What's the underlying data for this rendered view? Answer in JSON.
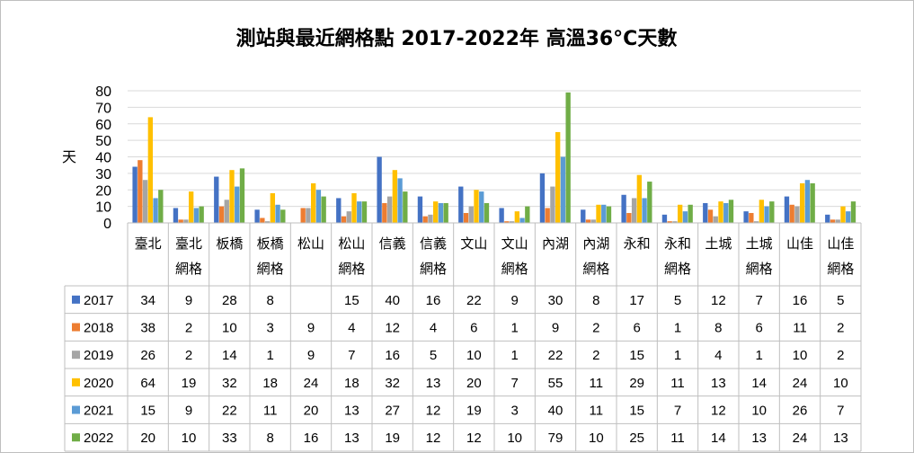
{
  "chart_data": {
    "type": "bar",
    "title": "測站與最近網格點 2017-2022年 高溫36°C天數",
    "ylabel": "天",
    "ylim": [
      0,
      80
    ],
    "yticks": [
      0,
      10,
      20,
      30,
      40,
      50,
      60,
      70,
      80
    ],
    "grid": true,
    "legend_placement": "data-table",
    "categories": [
      [
        "臺北"
      ],
      [
        "臺北",
        "網格"
      ],
      [
        "板橋"
      ],
      [
        "板橋",
        "網格"
      ],
      [
        "松山"
      ],
      [
        "松山",
        "網格"
      ],
      [
        "信義"
      ],
      [
        "信義",
        "網格"
      ],
      [
        "文山"
      ],
      [
        "文山",
        "網格"
      ],
      [
        "內湖"
      ],
      [
        "內湖",
        "網格"
      ],
      [
        "永和"
      ],
      [
        "永和",
        "網格"
      ],
      [
        "土城"
      ],
      [
        "土城",
        "網格"
      ],
      [
        "山佳"
      ],
      [
        "山佳",
        "網格"
      ]
    ],
    "series": [
      {
        "name": "2017",
        "color": "#4472C4",
        "values": [
          34,
          9,
          28,
          8,
          null,
          15,
          40,
          16,
          22,
          9,
          30,
          8,
          17,
          5,
          12,
          7,
          16,
          5
        ]
      },
      {
        "name": "2018",
        "color": "#ED7D31",
        "values": [
          38,
          2,
          10,
          3,
          9,
          4,
          12,
          4,
          6,
          1,
          9,
          2,
          6,
          1,
          8,
          6,
          11,
          2
        ]
      },
      {
        "name": "2019",
        "color": "#A5A5A5",
        "values": [
          26,
          2,
          14,
          1,
          9,
          7,
          16,
          5,
          10,
          1,
          22,
          2,
          15,
          1,
          4,
          1,
          10,
          2
        ]
      },
      {
        "name": "2020",
        "color": "#FFC000",
        "values": [
          64,
          19,
          32,
          18,
          24,
          18,
          32,
          13,
          20,
          7,
          55,
          11,
          29,
          11,
          13,
          14,
          24,
          10
        ]
      },
      {
        "name": "2021",
        "color": "#5B9BD5",
        "values": [
          15,
          9,
          22,
          11,
          20,
          13,
          27,
          12,
          19,
          3,
          40,
          11,
          15,
          7,
          12,
          10,
          26,
          7
        ]
      },
      {
        "name": "2022",
        "color": "#70AD47",
        "values": [
          20,
          10,
          33,
          8,
          16,
          13,
          19,
          12,
          12,
          10,
          79,
          10,
          25,
          11,
          14,
          13,
          24,
          13
        ]
      }
    ]
  }
}
